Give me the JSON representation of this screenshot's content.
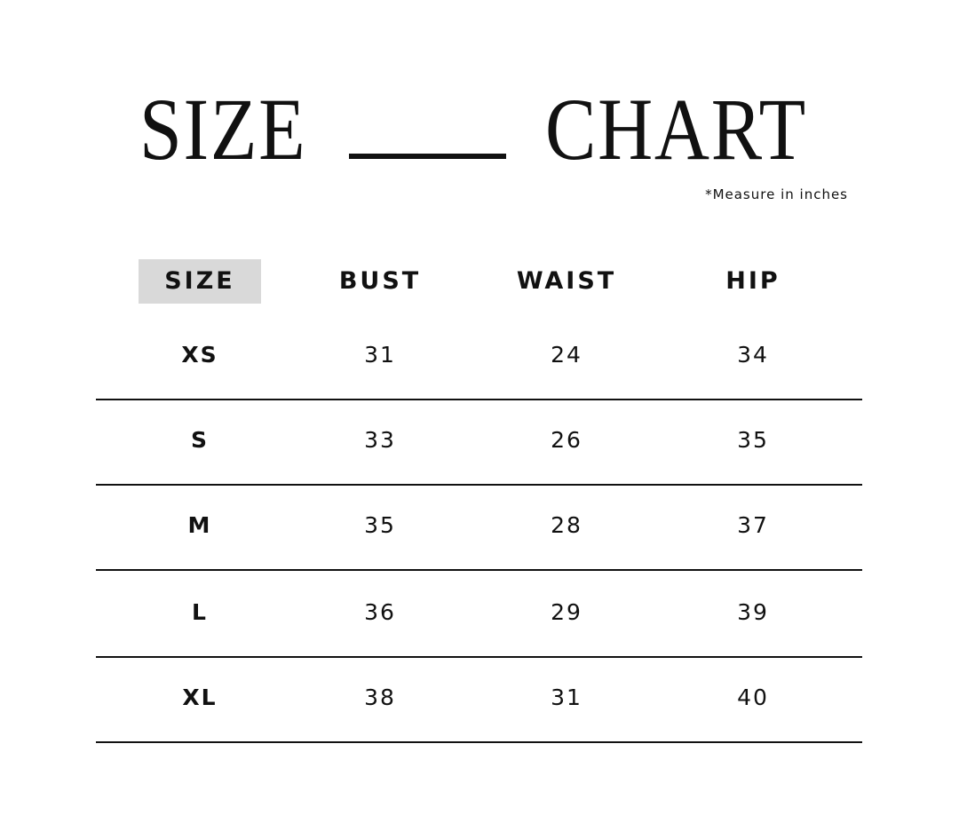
{
  "title": {
    "left": "SIZE",
    "right": "CHART"
  },
  "note": "*Measure in inches",
  "columns": [
    "SIZE",
    "BUST",
    "WAIST",
    "HIP"
  ],
  "header_highlight_color": "#d9d9d9",
  "rows": [
    {
      "size": "XS",
      "bust": "31",
      "waist": "24",
      "hip": "34"
    },
    {
      "size": "S",
      "bust": "33",
      "waist": "26",
      "hip": "35"
    },
    {
      "size": "M",
      "bust": "35",
      "waist": "28",
      "hip": "37"
    },
    {
      "size": "L",
      "bust": "36",
      "waist": "29",
      "hip": "39"
    },
    {
      "size": "XL",
      "bust": "38",
      "waist": "31",
      "hip": "40"
    }
  ]
}
